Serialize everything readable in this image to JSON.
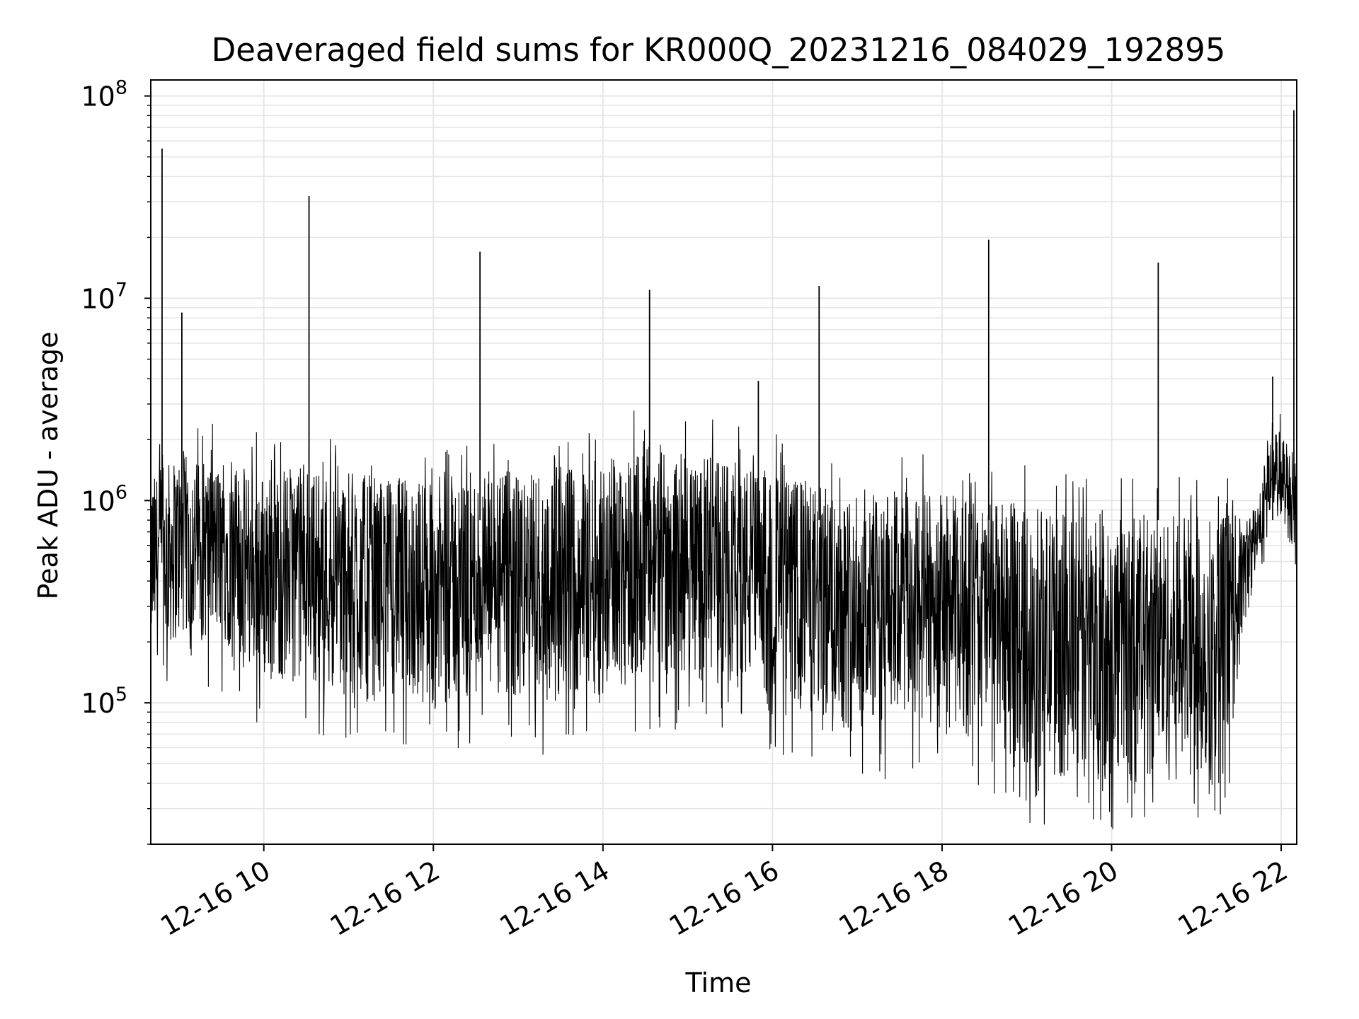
{
  "chart_data": {
    "type": "line",
    "title": "Deaveraged field sums for KR000Q_20231216_084029_192895",
    "xlabel": "Time",
    "ylabel": "Peak ADU - average",
    "yscale": "log",
    "xlim": [
      "2023-12-16 08:40",
      "2023-12-16 22:11"
    ],
    "ylim": [
      20000,
      120000000
    ],
    "x_ticks": [
      {
        "value": "2023-12-16 10:00",
        "label": "12-16 10"
      },
      {
        "value": "2023-12-16 12:00",
        "label": "12-16 12"
      },
      {
        "value": "2023-12-16 14:00",
        "label": "12-16 14"
      },
      {
        "value": "2023-12-16 16:00",
        "label": "12-16 16"
      },
      {
        "value": "2023-12-16 18:00",
        "label": "12-16 18"
      },
      {
        "value": "2023-12-16 20:00",
        "label": "12-16 20"
      },
      {
        "value": "2023-12-16 22:00",
        "label": "12-16 22"
      }
    ],
    "y_ticks": [
      {
        "value": 100000,
        "base": "10",
        "exp": "5"
      },
      {
        "value": 1000000,
        "base": "10",
        "exp": "6"
      },
      {
        "value": 10000000,
        "base": "10",
        "exp": "7"
      },
      {
        "value": 100000000,
        "base": "10",
        "exp": "8"
      }
    ],
    "grid": true,
    "line_color": "#000000",
    "grid_color": "#e6e6e6",
    "spikes": [
      {
        "time": "2023-12-16 08:48",
        "value": 55000000
      },
      {
        "time": "2023-12-16 09:02",
        "value": 8500000
      },
      {
        "time": "2023-12-16 10:32",
        "value": 32000000
      },
      {
        "time": "2023-12-16 12:33",
        "value": 17000000
      },
      {
        "time": "2023-12-16 14:33",
        "value": 11000000
      },
      {
        "time": "2023-12-16 15:50",
        "value": 3900000
      },
      {
        "time": "2023-12-16 16:33",
        "value": 11500000
      },
      {
        "time": "2023-12-16 18:33",
        "value": 19500000
      },
      {
        "time": "2023-12-16 20:33",
        "value": 15000000
      },
      {
        "time": "2023-12-16 21:54",
        "value": 4100000
      },
      {
        "time": "2023-12-16 22:09",
        "value": 85000000
      }
    ],
    "envelope": [
      {
        "time": "2023-12-16 08:40",
        "low": 160000,
        "high": 1300000
      },
      {
        "time": "2023-12-16 09:00",
        "low": 200000,
        "high": 1700000
      },
      {
        "time": "2023-12-16 09:30",
        "low": 200000,
        "high": 1500000
      },
      {
        "time": "2023-12-16 10:00",
        "low": 120000,
        "high": 1400000
      },
      {
        "time": "2023-12-16 10:30",
        "low": 130000,
        "high": 1500000
      },
      {
        "time": "2023-12-16 11:00",
        "low": 100000,
        "high": 1400000
      },
      {
        "time": "2023-12-16 11:30",
        "low": 110000,
        "high": 1300000
      },
      {
        "time": "2023-12-16 12:00",
        "low": 90000,
        "high": 1300000
      },
      {
        "time": "2023-12-16 12:30",
        "low": 100000,
        "high": 1400000
      },
      {
        "time": "2023-12-16 13:00",
        "low": 90000,
        "high": 1400000
      },
      {
        "time": "2023-12-16 13:30",
        "low": 100000,
        "high": 1500000
      },
      {
        "time": "2023-12-16 14:00",
        "low": 110000,
        "high": 1600000
      },
      {
        "time": "2023-12-16 14:30",
        "low": 130000,
        "high": 2000000
      },
      {
        "time": "2023-12-16 15:00",
        "low": 130000,
        "high": 1700000
      },
      {
        "time": "2023-12-16 15:30",
        "low": 120000,
        "high": 1600000
      },
      {
        "time": "2023-12-16 16:00",
        "low": 100000,
        "high": 1400000
      },
      {
        "time": "2023-12-16 16:30",
        "low": 80000,
        "high": 1200000
      },
      {
        "time": "2023-12-16 17:00",
        "low": 70000,
        "high": 1100000
      },
      {
        "time": "2023-12-16 17:30",
        "low": 75000,
        "high": 1100000
      },
      {
        "time": "2023-12-16 18:00",
        "low": 70000,
        "high": 1100000
      },
      {
        "time": "2023-12-16 18:30",
        "low": 65000,
        "high": 1000000
      },
      {
        "time": "2023-12-16 19:00",
        "low": 45000,
        "high": 950000
      },
      {
        "time": "2023-12-16 19:30",
        "low": 40000,
        "high": 850000
      },
      {
        "time": "2023-12-16 20:00",
        "low": 40000,
        "high": 850000
      },
      {
        "time": "2023-12-16 20:30",
        "low": 40000,
        "high": 850000
      },
      {
        "time": "2023-12-16 21:00",
        "low": 40000,
        "high": 850000
      },
      {
        "time": "2023-12-16 21:20",
        "low": 40000,
        "high": 900000
      },
      {
        "time": "2023-12-16 21:35",
        "low": 250000,
        "high": 800000
      },
      {
        "time": "2023-12-16 21:45",
        "low": 500000,
        "high": 1100000
      },
      {
        "time": "2023-12-16 21:50",
        "low": 900000,
        "high": 2000000
      },
      {
        "time": "2023-12-16 22:00",
        "low": 800000,
        "high": 2300000
      },
      {
        "time": "2023-12-16 22:11",
        "low": 500000,
        "high": 1500000
      }
    ]
  }
}
